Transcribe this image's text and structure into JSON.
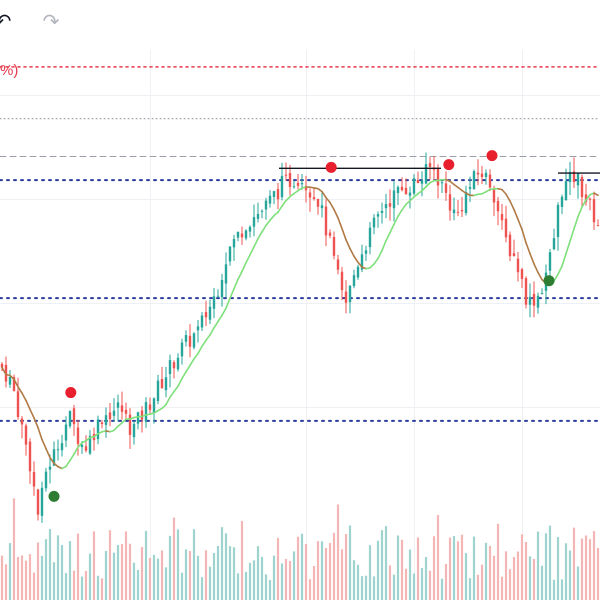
{
  "toolbar": {
    "undo_icon": "undo-arrow-icon",
    "redo_icon": "redo-arrow-icon",
    "undo_glyph": "↶",
    "redo_glyph": "↷"
  },
  "legend_fragment": "%)",
  "colors": {
    "candle_up": "#26a69a",
    "candle_down": "#ef5350",
    "vol_up": "#9ed4cf",
    "vol_down": "#f4b6b4",
    "ma_up": "#7ee07a",
    "ma_down": "#b07a45",
    "level": "#2a3d9e",
    "top_dotted": "#e5394b",
    "resistance": "#131722",
    "signal_sell": "#e8202e",
    "signal_buy": "#2e7d32",
    "grid": "#eef0f3"
  },
  "chart_data": {
    "type": "candlestick",
    "price_range": [
      0,
      100
    ],
    "horizontal_levels": [
      {
        "style": "dotted-red",
        "value": 96
      },
      {
        "style": "dotted-gray",
        "value": 85
      },
      {
        "style": "dashed-gray",
        "value": 77
      },
      {
        "style": "dotted-blue",
        "value": 72
      },
      {
        "style": "dotted-blue",
        "value": 47
      },
      {
        "style": "dotted-blue",
        "value": 21
      }
    ],
    "resistance_segments": [
      {
        "start": 0.465,
        "end": 0.735,
        "value": 74.5
      },
      {
        "start": 0.93,
        "end": 1.0,
        "value": 73.5
      }
    ],
    "signals": [
      {
        "type": "sell",
        "pos": 0.118,
        "value": 27
      },
      {
        "type": "buy",
        "pos": 0.09,
        "value": 5
      },
      {
        "type": "sell",
        "pos": 0.552,
        "value": 74.7
      },
      {
        "type": "sell",
        "pos": 0.748,
        "value": 75.3
      },
      {
        "type": "sell",
        "pos": 0.82,
        "value": 77.2
      },
      {
        "type": "buy",
        "pos": 0.915,
        "value": 50.7
      }
    ],
    "price_keypoints": [
      [
        0.0,
        33
      ],
      [
        0.02,
        29
      ],
      [
        0.05,
        12
      ],
      [
        0.065,
        0
      ],
      [
        0.075,
        10
      ],
      [
        0.09,
        14
      ],
      [
        0.115,
        22
      ],
      [
        0.14,
        15
      ],
      [
        0.17,
        22
      ],
      [
        0.2,
        24
      ],
      [
        0.22,
        19
      ],
      [
        0.25,
        25
      ],
      [
        0.3,
        36
      ],
      [
        0.33,
        40
      ],
      [
        0.36,
        48
      ],
      [
        0.38,
        57
      ],
      [
        0.41,
        63
      ],
      [
        0.44,
        66
      ],
      [
        0.47,
        71
      ],
      [
        0.5,
        73
      ],
      [
        0.53,
        68
      ],
      [
        0.545,
        61
      ],
      [
        0.56,
        53
      ],
      [
        0.575,
        45
      ],
      [
        0.59,
        52
      ],
      [
        0.6,
        56
      ],
      [
        0.64,
        67
      ],
      [
        0.67,
        70
      ],
      [
        0.7,
        72
      ],
      [
        0.72,
        75
      ],
      [
        0.74,
        70
      ],
      [
        0.76,
        64
      ],
      [
        0.78,
        70
      ],
      [
        0.8,
        74
      ],
      [
        0.82,
        71
      ],
      [
        0.84,
        60
      ],
      [
        0.86,
        55
      ],
      [
        0.88,
        46
      ],
      [
        0.9,
        48
      ],
      [
        0.92,
        57
      ],
      [
        0.935,
        70
      ],
      [
        0.96,
        73
      ],
      [
        0.98,
        67
      ],
      [
        1.0,
        62
      ]
    ]
  }
}
